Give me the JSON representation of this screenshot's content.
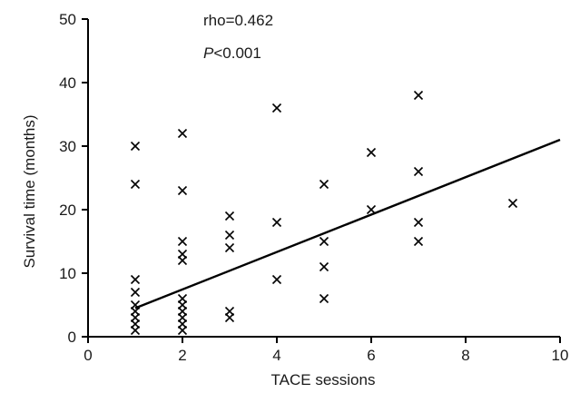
{
  "chart_data": {
    "type": "scatter",
    "xlabel": "TACE sessions",
    "ylabel": "Survival time (months)",
    "xlim": [
      0,
      10
    ],
    "ylim": [
      0,
      50
    ],
    "xticks": [
      0,
      2,
      4,
      6,
      8,
      10
    ],
    "yticks": [
      0,
      10,
      20,
      30,
      40,
      50
    ],
    "grid": false,
    "marker": "x",
    "annotations": {
      "rho": "rho=0.462",
      "p_italic": "P",
      "p_rest": "<0.001"
    },
    "points": [
      {
        "x": 1,
        "y": 30
      },
      {
        "x": 1,
        "y": 24
      },
      {
        "x": 1,
        "y": 9
      },
      {
        "x": 1,
        "y": 7
      },
      {
        "x": 1,
        "y": 5
      },
      {
        "x": 1,
        "y": 4
      },
      {
        "x": 1,
        "y": 3
      },
      {
        "x": 1,
        "y": 2
      },
      {
        "x": 1,
        "y": 1
      },
      {
        "x": 2,
        "y": 32
      },
      {
        "x": 2,
        "y": 23
      },
      {
        "x": 2,
        "y": 15
      },
      {
        "x": 2,
        "y": 13
      },
      {
        "x": 2,
        "y": 12
      },
      {
        "x": 2,
        "y": 6
      },
      {
        "x": 2,
        "y": 5
      },
      {
        "x": 2,
        "y": 4
      },
      {
        "x": 2,
        "y": 3
      },
      {
        "x": 2,
        "y": 2
      },
      {
        "x": 2,
        "y": 1
      },
      {
        "x": 3,
        "y": 19
      },
      {
        "x": 3,
        "y": 16
      },
      {
        "x": 3,
        "y": 14
      },
      {
        "x": 3,
        "y": 4
      },
      {
        "x": 3,
        "y": 3
      },
      {
        "x": 4,
        "y": 36
      },
      {
        "x": 4,
        "y": 18
      },
      {
        "x": 4,
        "y": 9
      },
      {
        "x": 5,
        "y": 24
      },
      {
        "x": 5,
        "y": 15
      },
      {
        "x": 5,
        "y": 11
      },
      {
        "x": 5,
        "y": 6
      },
      {
        "x": 6,
        "y": 29
      },
      {
        "x": 6,
        "y": 20
      },
      {
        "x": 7,
        "y": 38
      },
      {
        "x": 7,
        "y": 26
      },
      {
        "x": 7,
        "y": 18
      },
      {
        "x": 7,
        "y": 15
      },
      {
        "x": 9,
        "y": 21
      }
    ],
    "fit_line": {
      "x": [
        1,
        10
      ],
      "y": [
        4.5,
        31
      ]
    }
  }
}
